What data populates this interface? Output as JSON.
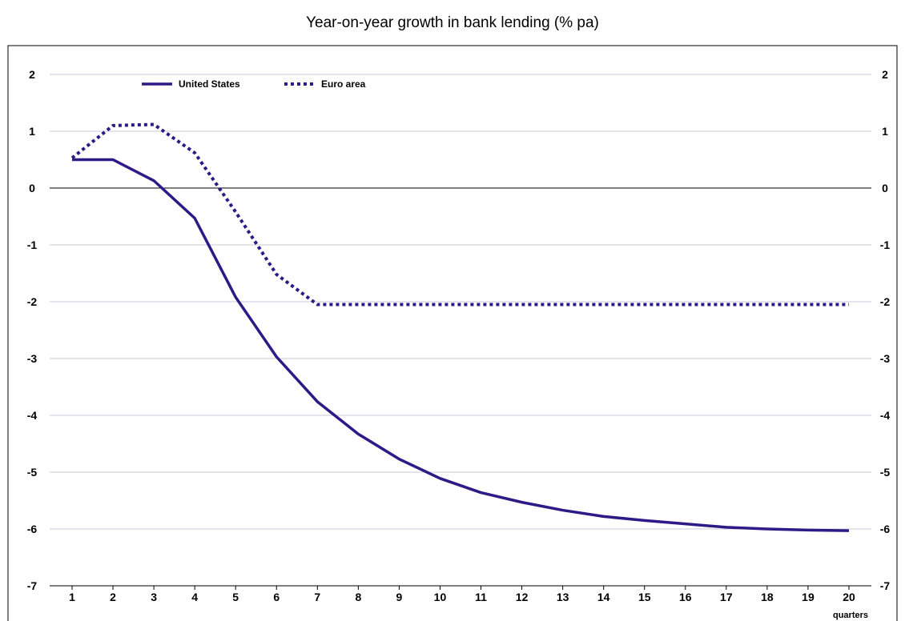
{
  "chart_data": {
    "type": "line",
    "title": "Year-on-year growth in bank lending (% pa)",
    "xlabel": "quarters",
    "ylabel": "",
    "x": [
      1,
      2,
      3,
      4,
      5,
      6,
      7,
      8,
      9,
      10,
      11,
      12,
      13,
      14,
      15,
      16,
      17,
      18,
      19,
      20
    ],
    "ylim": [
      -7,
      2
    ],
    "yticks": [
      2,
      1,
      0,
      -1,
      -2,
      -3,
      -4,
      -5,
      -6,
      -7
    ],
    "grid": true,
    "legend_position": "top-left",
    "series": [
      {
        "name": "United States",
        "style": "solid",
        "color": "#2e1a87",
        "values": [
          0.5,
          0.5,
          0.13,
          -0.53,
          -1.92,
          -2.97,
          -3.76,
          -4.33,
          -4.77,
          -5.11,
          -5.36,
          -5.53,
          -5.67,
          -5.78,
          -5.85,
          -5.91,
          -5.97,
          -6.0,
          -6.02,
          -6.03
        ]
      },
      {
        "name": "Euro area",
        "style": "dotted",
        "color": "#2e1a87",
        "values": [
          0.53,
          1.1,
          1.12,
          0.62,
          -0.42,
          -1.52,
          -2.05,
          -2.05,
          -2.05,
          -2.05,
          -2.05,
          -2.05,
          -2.05,
          -2.05,
          -2.05,
          -2.05,
          -2.05,
          -2.05,
          -2.05,
          -2.05
        ]
      }
    ]
  }
}
